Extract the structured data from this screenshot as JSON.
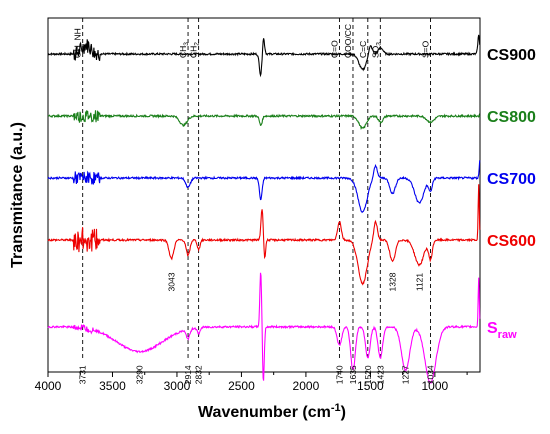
{
  "chart_data": {
    "type": "line",
    "title": "",
    "xlabel": "Wavenumber (cm",
    "xlabel_sup": "-1",
    "xlabel_close": ")",
    "ylabel": "Transmitance (a.u.)",
    "xlim": [
      4000,
      650
    ],
    "x_ticks": [
      4000,
      3500,
      3000,
      2500,
      2000,
      1500,
      1000
    ],
    "grid": false,
    "legend": "labels at right end of each trace",
    "reference_lines": [
      {
        "x": 3731,
        "label": "OH, NH"
      },
      {
        "x": 2914,
        "label": "CH",
        "sub": "3"
      },
      {
        "x": 2832,
        "label": "CH",
        "sub": "2"
      },
      {
        "x": 1740,
        "label": "C=O"
      },
      {
        "x": 1635,
        "label": "COO/CC"
      },
      {
        "x": 1520,
        "label": "C=C"
      },
      {
        "x": 1423,
        "label": "SO",
        "sub": "3"
      },
      {
        "x": 1034,
        "label": "S=O"
      }
    ],
    "annotations": [
      {
        "x": 3043,
        "text": "3043",
        "series": "CS600"
      },
      {
        "x": 1328,
        "text": "1328",
        "series": "CS600"
      },
      {
        "x": 1121,
        "text": "1121",
        "series": "CS600"
      },
      {
        "x": 3731,
        "text": "3731",
        "series": "Sraw"
      },
      {
        "x": 3290,
        "text": "3290",
        "series": "Sraw"
      },
      {
        "x": 2914,
        "text": "2914",
        "series": "Sraw"
      },
      {
        "x": 2832,
        "text": "2832",
        "series": "Sraw"
      },
      {
        "x": 1740,
        "text": "1740",
        "series": "Sraw"
      },
      {
        "x": 1635,
        "text": "1635",
        "series": "Sraw"
      },
      {
        "x": 1520,
        "text": "1520",
        "series": "Sraw"
      },
      {
        "x": 1423,
        "text": "1423",
        "series": "Sraw"
      },
      {
        "x": 1227,
        "text": "1227",
        "series": "Sraw"
      },
      {
        "x": 1034,
        "text": "1034",
        "series": "Sraw"
      }
    ],
    "series": [
      {
        "name": "CS900",
        "color": "#000000",
        "offset": 5.0,
        "noise": [
          [
            3800,
            3600,
            0.12
          ]
        ],
        "peaks": [
          [
            3700,
            0.15,
            50
          ],
          [
            2350,
            -0.35,
            15
          ],
          [
            2330,
            0.3,
            12
          ],
          [
            1560,
            -0.25,
            40
          ],
          [
            1500,
            0.15,
            20
          ],
          [
            1420,
            0.1,
            25
          ],
          [
            660,
            0.3,
            10
          ]
        ]
      },
      {
        "name": "CS800",
        "color": "#1a7f1a",
        "offset": 4.0,
        "noise": [
          [
            3800,
            3600,
            0.1
          ]
        ],
        "peaks": [
          [
            2950,
            -0.15,
            40
          ],
          [
            2350,
            -0.15,
            15
          ],
          [
            1560,
            -0.2,
            40
          ],
          [
            1420,
            -0.1,
            25
          ],
          [
            1034,
            -0.1,
            40
          ]
        ]
      },
      {
        "name": "CS700",
        "color": "#0000ee",
        "offset": 3.0,
        "noise": [
          [
            3800,
            3600,
            0.1
          ]
        ],
        "peaks": [
          [
            2914,
            -0.15,
            25
          ],
          [
            2350,
            -0.35,
            15
          ],
          [
            1560,
            -0.55,
            50
          ],
          [
            1460,
            0.2,
            20
          ],
          [
            1328,
            -0.25,
            30
          ],
          [
            1121,
            -0.4,
            50
          ],
          [
            1034,
            -0.2,
            20
          ],
          [
            650,
            0.3,
            8
          ]
        ]
      },
      {
        "name": "CS600",
        "color": "#ee0000",
        "offset": 2.0,
        "noise": [
          [
            3800,
            3600,
            0.2
          ]
        ],
        "peaks": [
          [
            3043,
            -0.3,
            25
          ],
          [
            2914,
            -0.25,
            20
          ],
          [
            2832,
            -0.15,
            15
          ],
          [
            2340,
            0.5,
            12
          ],
          [
            2320,
            -0.3,
            10
          ],
          [
            1740,
            0.3,
            20
          ],
          [
            1560,
            -0.7,
            50
          ],
          [
            1460,
            0.3,
            20
          ],
          [
            1328,
            -0.35,
            30
          ],
          [
            1121,
            -0.4,
            50
          ],
          [
            1034,
            -0.3,
            20
          ],
          [
            660,
            0.9,
            6
          ]
        ]
      },
      {
        "name": "S",
        "sub": "raw",
        "color": "#ff00ff",
        "offset": 0.6,
        "noise": [
          [
            3800,
            3650,
            0.05
          ]
        ],
        "peaks": [
          [
            3290,
            -0.4,
            250
          ],
          [
            2914,
            -0.15,
            20
          ],
          [
            2832,
            -0.1,
            15
          ],
          [
            2350,
            0.9,
            10
          ],
          [
            2330,
            -0.9,
            10
          ],
          [
            1740,
            -0.3,
            25
          ],
          [
            1635,
            -0.7,
            25
          ],
          [
            1520,
            -0.5,
            25
          ],
          [
            1423,
            -0.5,
            25
          ],
          [
            1227,
            -0.7,
            45
          ],
          [
            1034,
            -0.9,
            60
          ],
          [
            660,
            0.8,
            6
          ]
        ]
      }
    ]
  }
}
